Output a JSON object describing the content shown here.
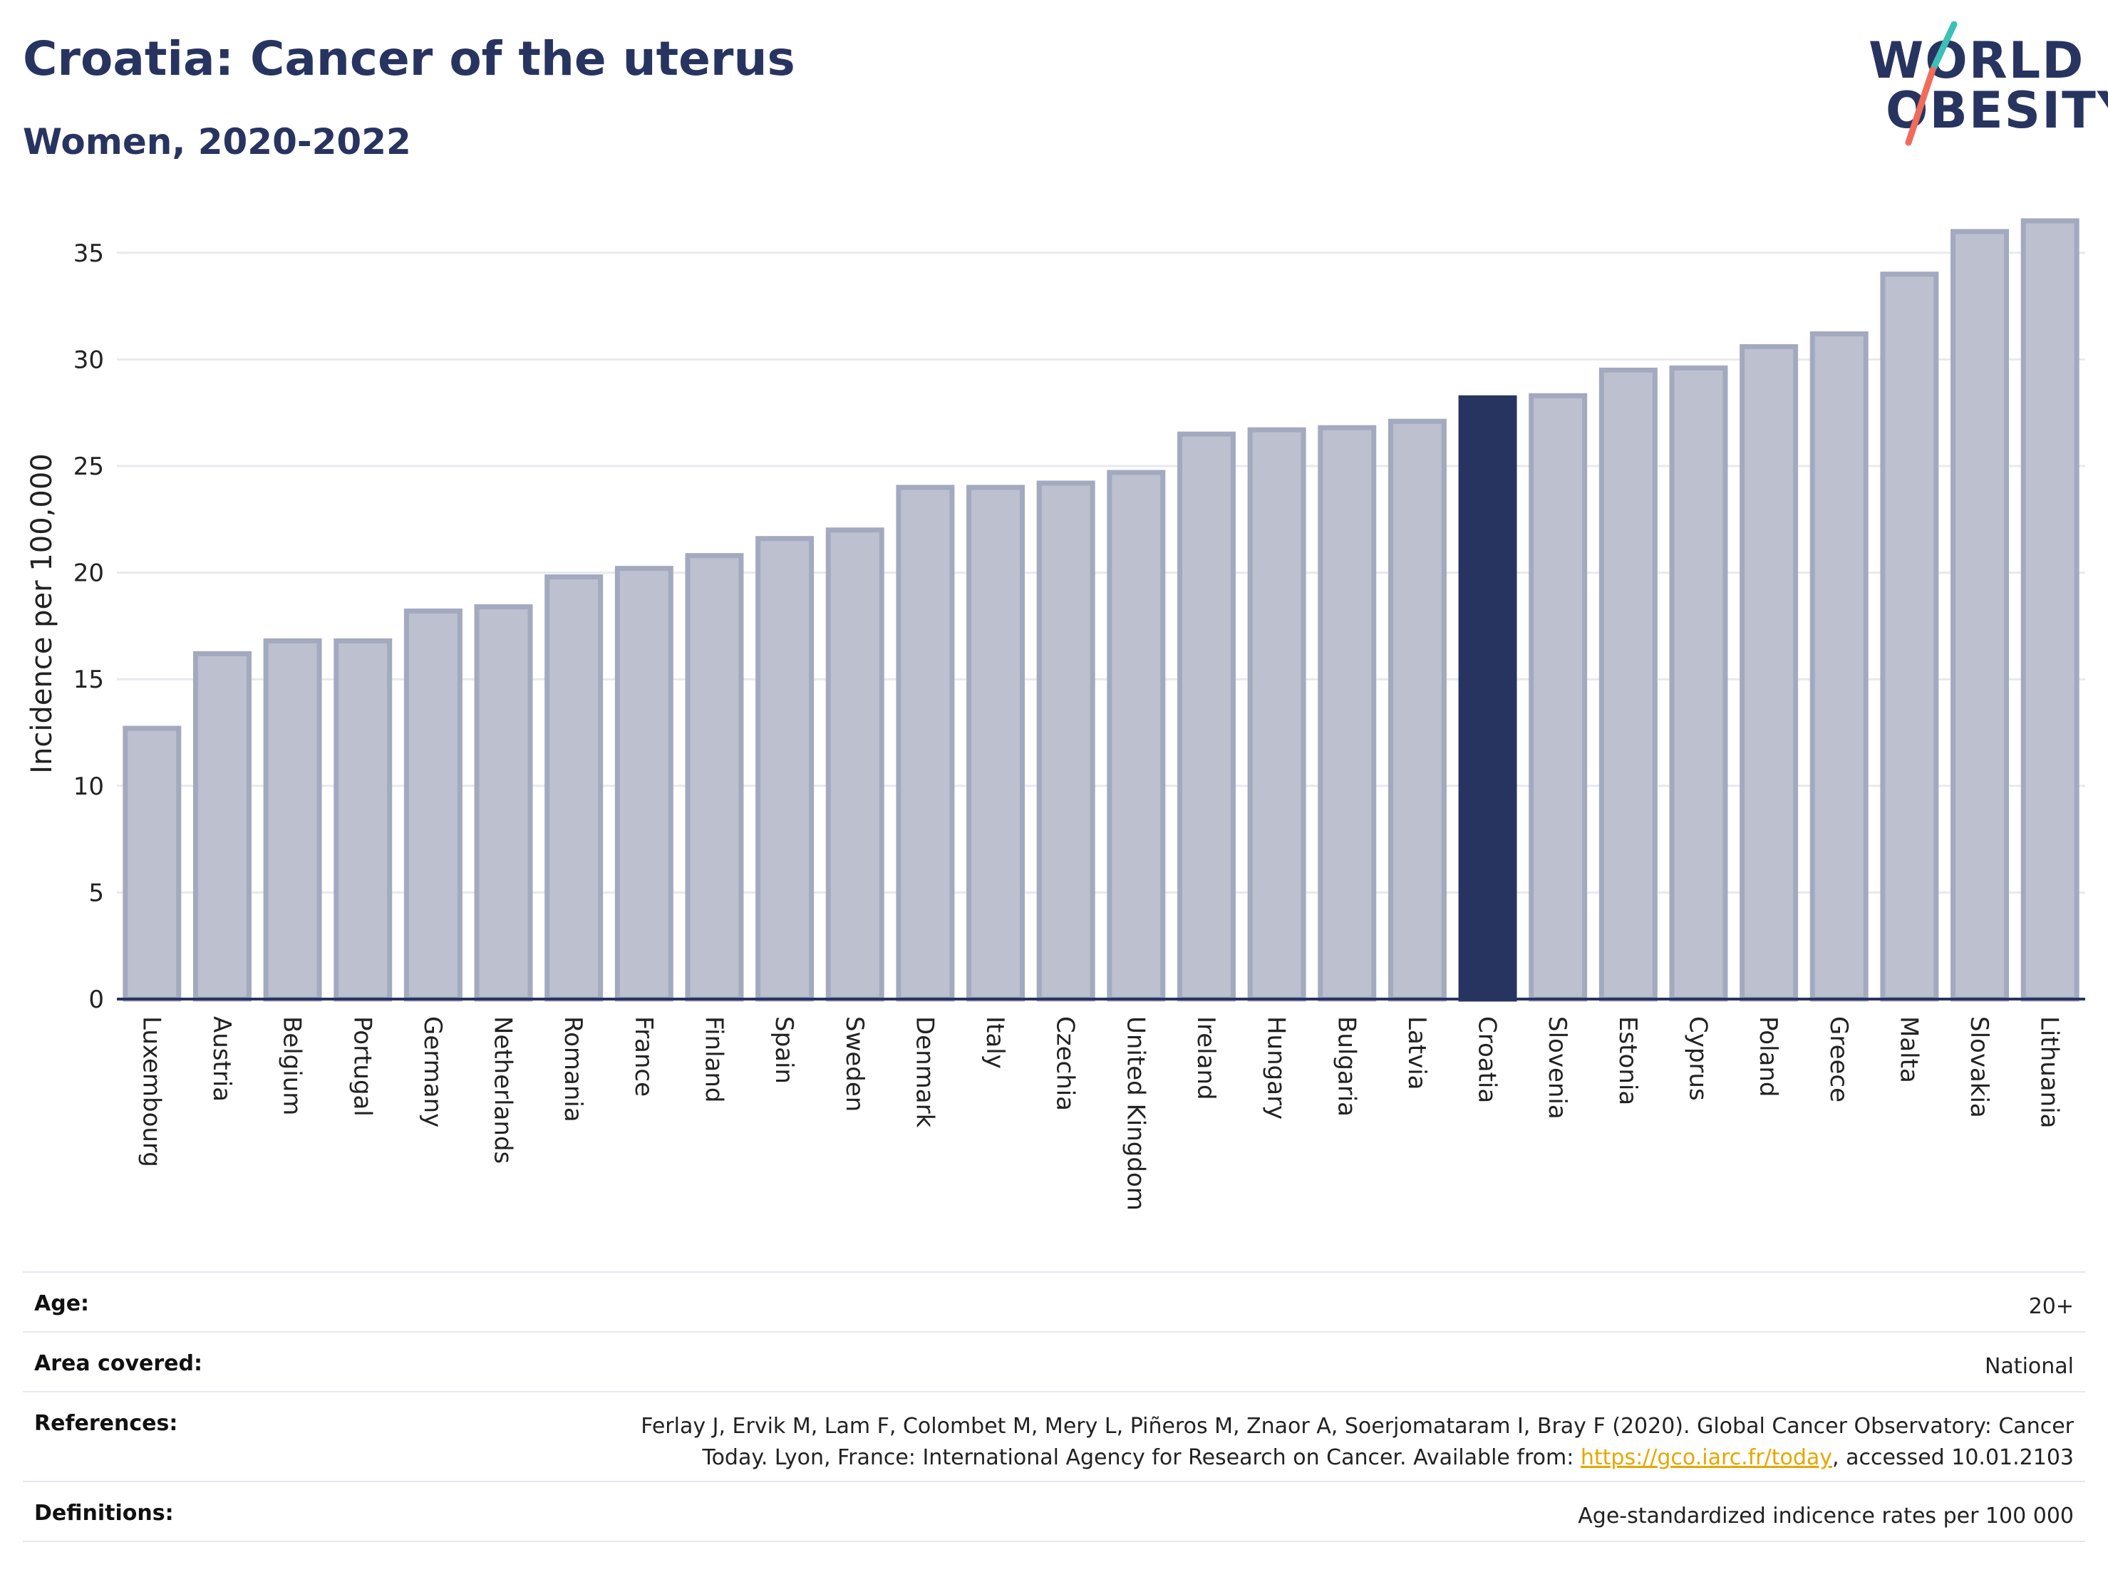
{
  "header": {
    "title": "Croatia: Cancer of the uterus",
    "subtitle": "Women, 2020-2022"
  },
  "logo": {
    "line1": "WORLD",
    "line2": "OBESITY",
    "accent_teal": "#3cc0b7",
    "accent_coral": "#f06b5a"
  },
  "colors": {
    "bar": "#bcc0cf",
    "bar_border": "#a3a9bf",
    "highlight": "#283460",
    "grid": "#e8e9ee",
    "axis": "#283460"
  },
  "chart_data": {
    "type": "bar",
    "title": "Croatia: Cancer of the uterus",
    "subtitle": "Women, 2020-2022",
    "xlabel": "",
    "ylabel": "Incidence per 100,000",
    "ylim": [
      0,
      37.5
    ],
    "yticks": [
      0,
      5,
      10,
      15,
      20,
      25,
      30,
      35
    ],
    "grid": true,
    "highlight": "Croatia",
    "categories": [
      "Luxembourg",
      "Austria",
      "Belgium",
      "Portugal",
      "Germany",
      "Netherlands",
      "Romania",
      "France",
      "Finland",
      "Spain",
      "Sweden",
      "Denmark",
      "Italy",
      "Czechia",
      "United Kingdom",
      "Ireland",
      "Hungary",
      "Bulgaria",
      "Latvia",
      "Croatia",
      "Slovenia",
      "Estonia",
      "Cyprus",
      "Poland",
      "Greece",
      "Malta",
      "Slovakia",
      "Lithuania"
    ],
    "values": [
      12.7,
      16.2,
      16.8,
      16.8,
      18.2,
      18.4,
      19.8,
      20.2,
      20.8,
      21.6,
      22.0,
      24.0,
      24.0,
      24.2,
      24.7,
      26.5,
      26.7,
      26.8,
      27.1,
      28.2,
      28.3,
      29.5,
      29.6,
      30.6,
      31.2,
      34.0,
      36.0,
      36.5
    ]
  },
  "info": {
    "age_label": "Age:",
    "age_value": "20+",
    "area_label": "Area covered:",
    "area_value": "National",
    "references_label": "References:",
    "references_line1": "Ferlay J, Ervik M, Lam F, Colombet M, Mery L, Piñeros M, Znaor A, Soerjomataram I, Bray F (2020). Global Cancer Observatory: Cancer",
    "references_line2_pre": "Today. Lyon, France: International Agency for Research on Cancer. Available from: ",
    "references_link": "https://gco.iarc.fr/today",
    "references_line2_post": ", accessed 10.01.2103",
    "definitions_label": "Definitions:",
    "definitions_value": "Age-standardized indicence rates per 100 000"
  }
}
